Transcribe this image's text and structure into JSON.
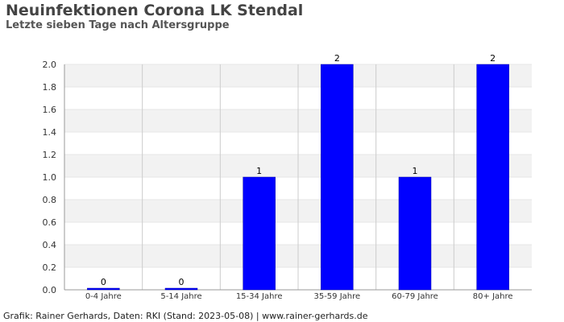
{
  "chart_data": {
    "type": "bar",
    "title": "Neuinfektionen Corona LK Stendal",
    "subtitle": "Letzte sieben Tage nach Altersgruppe",
    "categories": [
      "0-4 Jahre",
      "5-14 Jahre",
      "15-34 Jahre",
      "35-59 Jahre",
      "60-79 Jahre",
      "80+ Jahre"
    ],
    "values": [
      0,
      0,
      1,
      2,
      1,
      2
    ],
    "data_labels": [
      "0",
      "0",
      "1",
      "2",
      "1",
      "2"
    ],
    "yticks": [
      "0.0",
      "0.2",
      "0.4",
      "0.6",
      "0.8",
      "1.0",
      "1.2",
      "1.4",
      "1.6",
      "1.8",
      "2.0"
    ],
    "ylim": [
      0,
      2
    ],
    "xlabel": "",
    "ylabel": "",
    "grid": true,
    "bar_color": "#0000ff",
    "band_color": "#f2f2f2"
  },
  "footer": "Grafik: Rainer Gerhards, Daten: RKI (Stand: 2023-05-08) | www.rainer-gerhards.de"
}
